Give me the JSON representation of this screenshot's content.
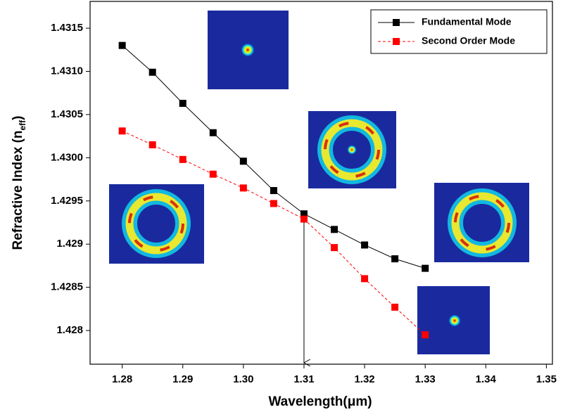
{
  "chart_data": {
    "type": "line",
    "xlabel": "Wavelength(μm)",
    "ylabel_parts": [
      "Refractive Index (n",
      "eff",
      ")"
    ],
    "x": [
      1.28,
      1.285,
      1.29,
      1.295,
      1.3,
      1.305,
      1.31,
      1.315,
      1.32,
      1.325,
      1.33
    ],
    "series": [
      {
        "name": "Fundamental Mode",
        "color": "#000000",
        "dash": false,
        "values": [
          1.4313,
          1.43099,
          1.43063,
          1.43029,
          1.42996,
          1.42962,
          1.42935,
          1.42917,
          1.42899,
          1.42883,
          1.42872
        ]
      },
      {
        "name": "Second Order Mode",
        "color": "#ff0000",
        "dash": true,
        "values": [
          1.43031,
          1.43015,
          1.42998,
          1.42981,
          1.42965,
          1.42947,
          1.42929,
          1.42896,
          1.4286,
          1.42827,
          1.42795
        ]
      }
    ],
    "xlim": [
      1.2747,
      1.351
    ],
    "xticks": [
      {
        "value": 1.28,
        "label": "1.28"
      },
      {
        "value": 1.29,
        "label": "1.29"
      },
      {
        "value": 1.3,
        "label": "1.30"
      },
      1.31,
      1.32,
      1.33,
      1.34,
      1.35
    ],
    "ylim": [
      1.42761,
      1.43181
    ],
    "yticks": [
      1.428,
      1.4285,
      1.429,
      1.4295,
      {
        "value": 1.43,
        "label": "1.4300"
      },
      1.4305,
      {
        "value": 1.431,
        "label": "1.4310"
      },
      1.4315
    ],
    "legend": "upper right"
  }
}
